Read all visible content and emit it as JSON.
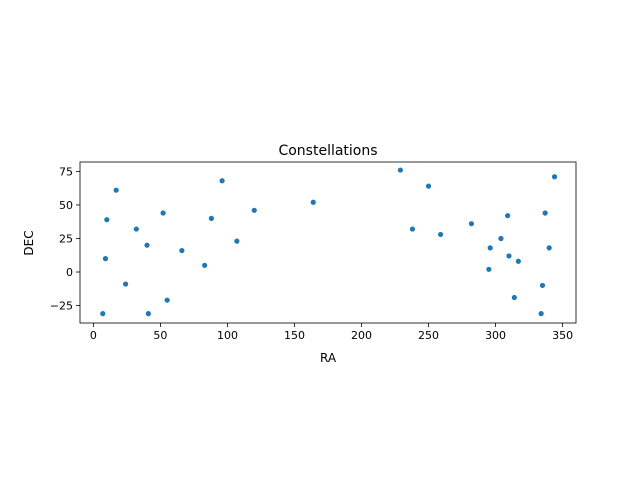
{
  "chart_data": {
    "type": "scatter",
    "title": "Constellations",
    "xlabel": "RA",
    "ylabel": "DEC",
    "xlim": [
      -10,
      360
    ],
    "ylim": [
      -38,
      82
    ],
    "xticks": [
      0,
      50,
      100,
      150,
      200,
      250,
      300,
      350
    ],
    "yticks": [
      -25,
      0,
      25,
      50,
      75
    ],
    "grid": false,
    "marker_color": "#1f77b4",
    "points": [
      {
        "x": 7,
        "y": -31
      },
      {
        "x": 9,
        "y": 10
      },
      {
        "x": 10,
        "y": 39
      },
      {
        "x": 17,
        "y": 61
      },
      {
        "x": 24,
        "y": -9
      },
      {
        "x": 32,
        "y": 32
      },
      {
        "x": 40,
        "y": 20
      },
      {
        "x": 41,
        "y": -31
      },
      {
        "x": 52,
        "y": 44
      },
      {
        "x": 55,
        "y": -21
      },
      {
        "x": 66,
        "y": 16
      },
      {
        "x": 83,
        "y": 5
      },
      {
        "x": 88,
        "y": 40
      },
      {
        "x": 96,
        "y": 68
      },
      {
        "x": 107,
        "y": 23
      },
      {
        "x": 120,
        "y": 46
      },
      {
        "x": 164,
        "y": 52
      },
      {
        "x": 229,
        "y": 76
      },
      {
        "x": 238,
        "y": 32
      },
      {
        "x": 250,
        "y": 64
      },
      {
        "x": 259,
        "y": 28
      },
      {
        "x": 282,
        "y": 36
      },
      {
        "x": 295,
        "y": 2
      },
      {
        "x": 296,
        "y": 18
      },
      {
        "x": 304,
        "y": 25
      },
      {
        "x": 309,
        "y": 42
      },
      {
        "x": 310,
        "y": 12
      },
      {
        "x": 314,
        "y": -19
      },
      {
        "x": 317,
        "y": 8
      },
      {
        "x": 334,
        "y": -31
      },
      {
        "x": 335,
        "y": -10
      },
      {
        "x": 337,
        "y": 44
      },
      {
        "x": 340,
        "y": 18
      },
      {
        "x": 344,
        "y": 71
      }
    ]
  }
}
